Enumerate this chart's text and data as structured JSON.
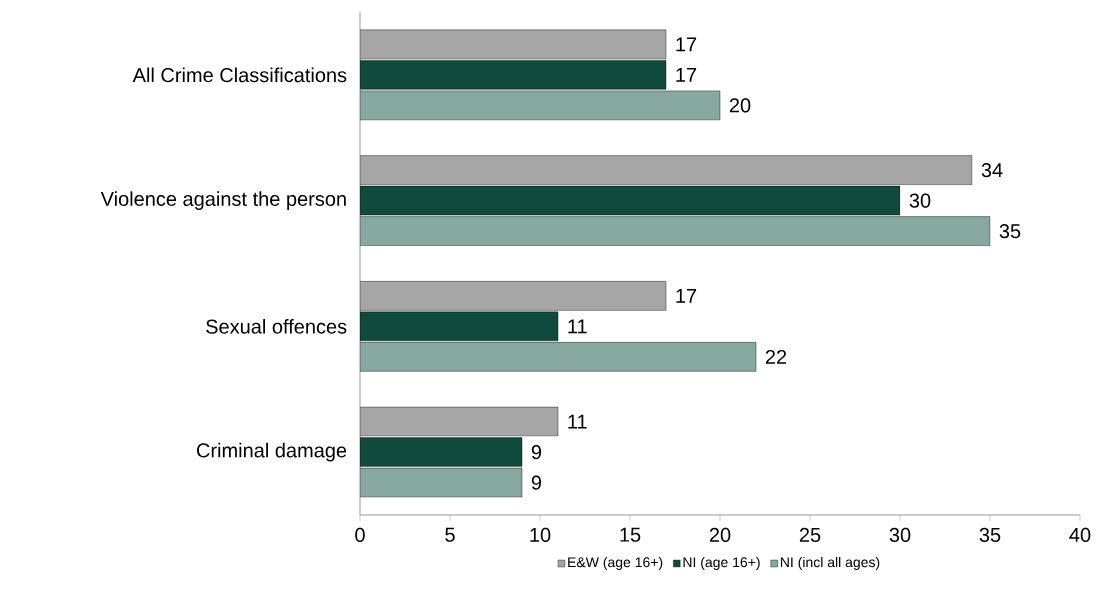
{
  "chart_data": {
    "type": "bar",
    "orientation": "horizontal",
    "categories": [
      "All Crime Classifications",
      "Violence against the person",
      "Sexual offences",
      "Criminal damage"
    ],
    "series": [
      {
        "name": "E&W (age 16+)",
        "color": "#a6a6a6",
        "values": [
          17,
          34,
          17,
          11
        ]
      },
      {
        "name": "NI (age 16+)",
        "color": "#0f4a3c",
        "values": [
          17,
          30,
          11,
          9
        ]
      },
      {
        "name": "NI (incl all ages)",
        "color": "#86a89f",
        "values": [
          20,
          35,
          22,
          9
        ]
      }
    ],
    "xlim": [
      0,
      40
    ],
    "xticks": [
      0,
      5,
      10,
      15,
      20,
      25,
      30,
      35,
      40
    ],
    "data_labels": true,
    "grid": false,
    "legend": "bottom"
  }
}
